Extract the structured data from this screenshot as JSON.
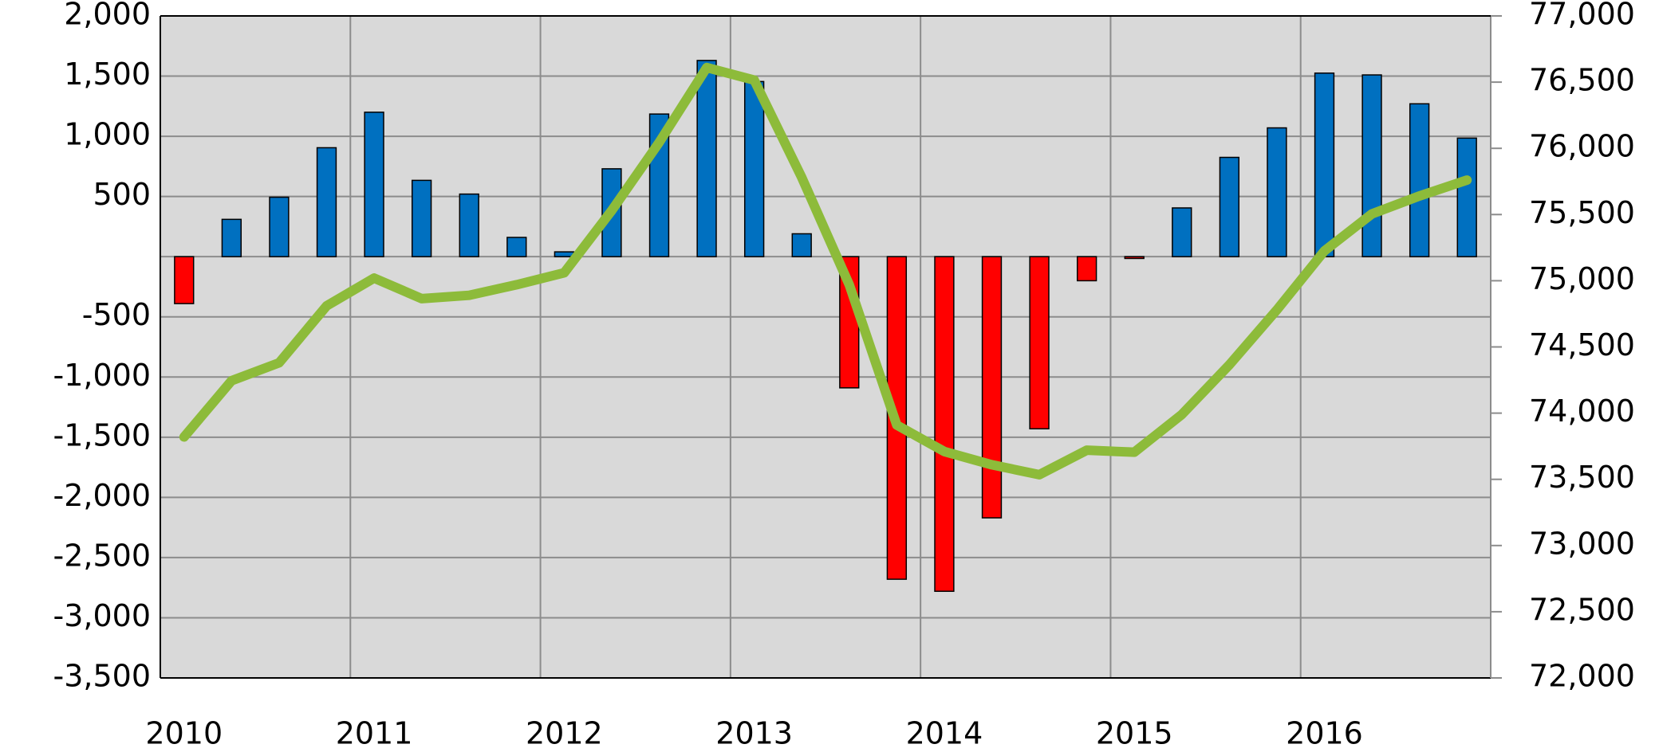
{
  "chart_data": {
    "type": "bar_line",
    "categories": [
      "2010",
      null,
      null,
      null,
      "2011",
      null,
      null,
      null,
      "2012",
      null,
      null,
      null,
      "2013",
      null,
      null,
      null,
      "2014",
      null,
      null,
      null,
      "2015",
      null,
      null,
      null,
      "2016",
      null,
      null,
      null
    ],
    "series": [
      {
        "type": "bar",
        "positive_color": "#0070c0",
        "negative_color": "#ff0000",
        "values": [
          -390,
          310,
          494,
          905,
          1200,
          634,
          520,
          160,
          40,
          730,
          1185,
          1630,
          1455,
          190,
          -1090,
          -2680,
          -2780,
          -2170,
          -1430,
          -200,
          -15,
          405,
          825,
          1070,
          1525,
          1510,
          1270,
          985
        ]
      },
      {
        "type": "line",
        "axis": "y2",
        "color": "#8dbb3a",
        "values": [
          73820,
          74245,
          74380,
          74810,
          75020,
          74865,
          74890,
          74970,
          75060,
          75530,
          76045,
          76610,
          76515,
          75780,
          74970,
          73910,
          73710,
          73610,
          73535,
          73720,
          73705,
          73990,
          74365,
          74780,
          75225,
          75505,
          75640,
          75760
        ]
      }
    ],
    "ylim": [
      -3500,
      2000
    ],
    "yticks": [
      {
        "value": 2000,
        "label": "2,000"
      },
      {
        "value": 1500,
        "label": "1,500"
      },
      {
        "value": 1000,
        "label": "1,000"
      },
      500,
      -500,
      {
        "value": -1000,
        "label": "-1,000"
      },
      {
        "value": -1500,
        "label": "-1,500"
      },
      {
        "value": -2000,
        "label": "-2,000"
      },
      {
        "value": -2500,
        "label": "-2,500"
      },
      {
        "value": -3000,
        "label": "-3,000"
      },
      {
        "value": -3500,
        "label": "-3,500"
      }
    ],
    "y2lim": [
      72000,
      77000
    ],
    "y2ticks": [
      {
        "value": 77000,
        "label": "77,000"
      },
      {
        "value": 76500,
        "label": "76,500"
      },
      {
        "value": 76000,
        "label": "76,000"
      },
      {
        "value": 75500,
        "label": "75,500"
      },
      {
        "value": 75000,
        "label": "75,000"
      },
      {
        "value": 74500,
        "label": "74,500"
      },
      {
        "value": 74000,
        "label": "74,000"
      },
      {
        "value": 73500,
        "label": "73,500"
      },
      {
        "value": 73000,
        "label": "73,000"
      },
      {
        "value": 72500,
        "label": "72,500"
      },
      {
        "value": 72000,
        "label": "72,000"
      }
    ],
    "grid": true
  }
}
